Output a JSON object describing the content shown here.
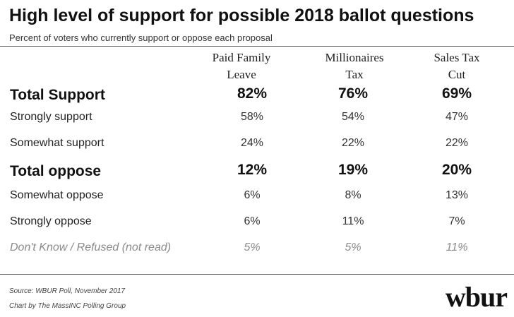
{
  "title": "High level of support for possible 2018 ballot questions",
  "subtitle": "Percent of voters who currently support or oppose each proposal",
  "columns": [
    {
      "line1": "Paid Family",
      "line2": "Leave"
    },
    {
      "line1": "Millionaires",
      "line2": "Tax"
    },
    {
      "line1": "Sales Tax",
      "line2": "Cut"
    }
  ],
  "rows": [
    {
      "label": "Total Support",
      "values": [
        "82%",
        "76%",
        "69%"
      ],
      "style": "total"
    },
    {
      "label": "Strongly support",
      "values": [
        "58%",
        "54%",
        "47%"
      ],
      "style": "regular"
    },
    {
      "label": "Somewhat support",
      "values": [
        "24%",
        "22%",
        "22%"
      ],
      "style": "regular"
    },
    {
      "label": "Total oppose",
      "values": [
        "12%",
        "19%",
        "20%"
      ],
      "style": "total"
    },
    {
      "label": "Somewhat oppose",
      "values": [
        "6%",
        "8%",
        "13%"
      ],
      "style": "regular"
    },
    {
      "label": "Strongly oppose",
      "values": [
        "6%",
        "11%",
        "7%"
      ],
      "style": "regular"
    },
    {
      "label": "Don't Know / Refused (not read)",
      "values": [
        "5%",
        "5%",
        "11%"
      ],
      "style": "muted"
    }
  ],
  "footer": {
    "source": "Source: WBUR Poll, November 2017",
    "credit": "Chart by The MassINC Polling Group",
    "logo": "wbur"
  }
}
